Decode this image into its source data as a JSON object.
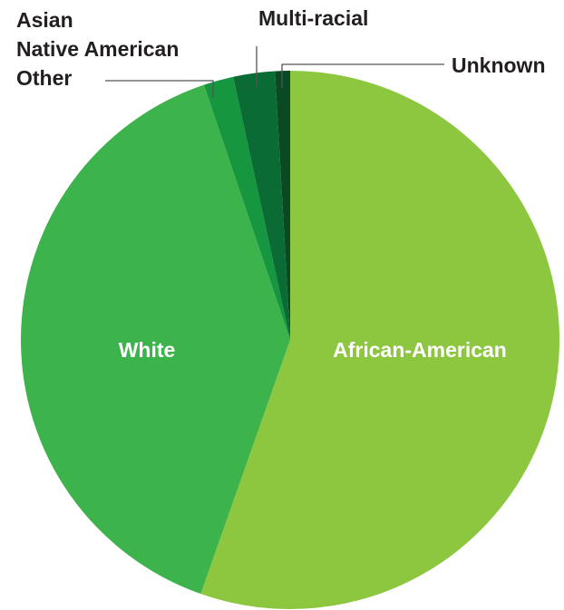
{
  "chart_data": {
    "type": "pie",
    "title": "",
    "series": [
      {
        "label": "African-American",
        "value": 55.5,
        "color": "#8dc63f",
        "label_position": "inside"
      },
      {
        "label": "White",
        "value": 39.5,
        "color": "#3cb44b",
        "label_position": "inside"
      },
      {
        "label": "Asian",
        "value": 0.0,
        "color": "#24a148",
        "label_position": "outside"
      },
      {
        "label": "Native American",
        "value": 0.0,
        "color": "#1a9446",
        "label_position": "outside"
      },
      {
        "label": "Other",
        "value": 1.8,
        "color": "#16973f",
        "label_position": "outside"
      },
      {
        "label": "Multi-racial",
        "value": 2.5,
        "color": "#0a6b35",
        "label_position": "outside"
      },
      {
        "label": "Unknown",
        "value": 0.9,
        "color": "#0a4a22",
        "label_position": "outside"
      }
    ]
  }
}
